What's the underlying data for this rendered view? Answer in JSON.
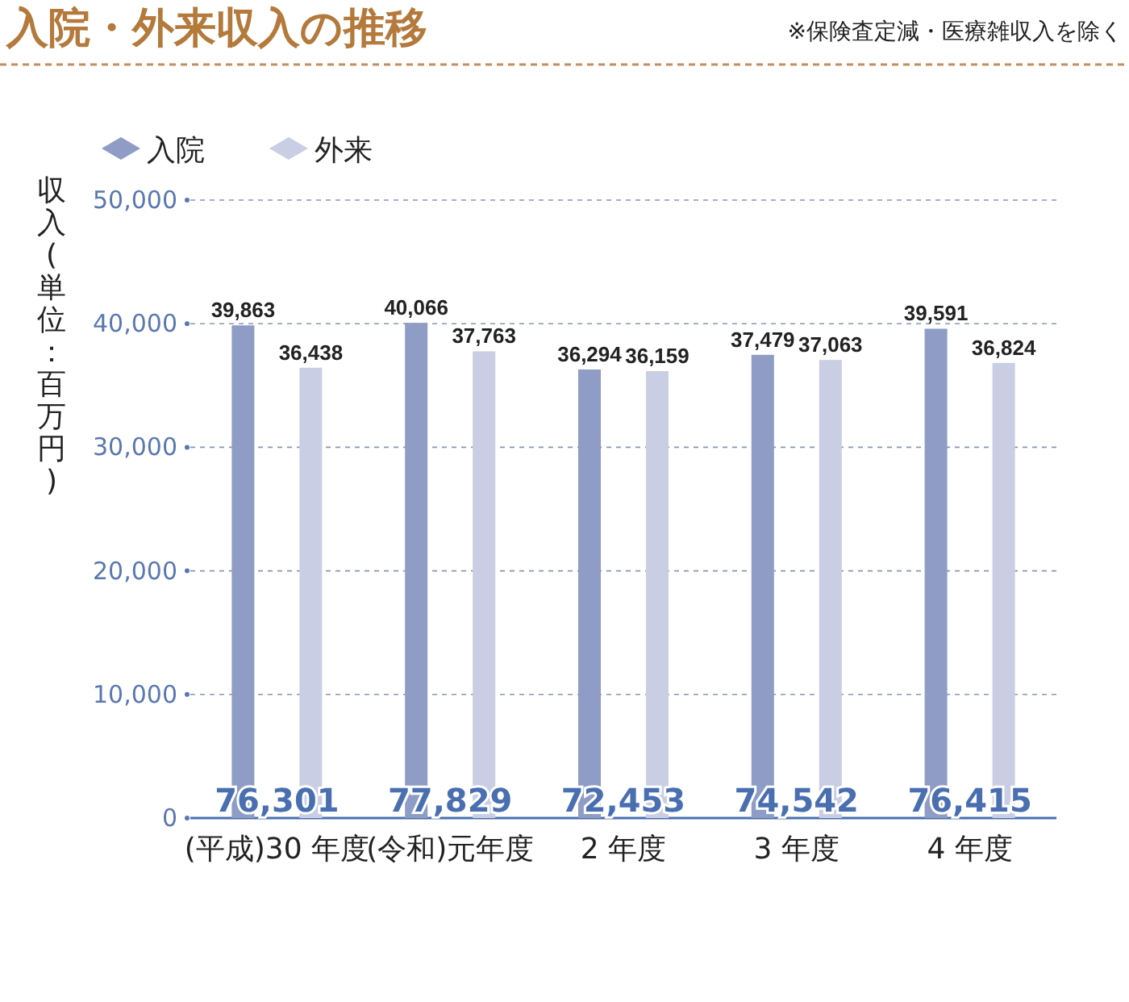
{
  "chart_data": {
    "type": "bar",
    "title": "入院・外来収入の推移",
    "subtitle": "※保険査定減・医療雑収入を除く",
    "ylabel": "収入(単位：百万円)",
    "categories": [
      "(平成)30 年度",
      "(令和)元年度",
      "2 年度",
      "3 年度",
      "4 年度"
    ],
    "series": [
      {
        "name": "入院",
        "color": "#8e9cc6",
        "values": [
          39863,
          40066,
          36294,
          37479,
          39591
        ],
        "value_labels": [
          "39,863",
          "40,066",
          "36,294",
          "37,479",
          "39,591"
        ]
      },
      {
        "name": "外来",
        "color": "#c9cee4",
        "values": [
          36438,
          37763,
          36159,
          37063,
          36824
        ],
        "value_labels": [
          "36,438",
          "37,763",
          "36,159",
          "37,063",
          "36,824"
        ]
      }
    ],
    "totals": [
      "76,301",
      "77,829",
      "72,453",
      "74,542",
      "76,415"
    ],
    "ylim": [
      0,
      50000
    ],
    "yticks": [
      0,
      {
        "value": 10000,
        "label": "10,000"
      },
      {
        "value": 20000,
        "label": "20,000"
      },
      {
        "value": 30000,
        "label": "30,000"
      },
      {
        "value": 40000,
        "label": "40,000"
      },
      {
        "value": 50000,
        "label": "50,000"
      }
    ],
    "grid": "y",
    "legend": "top left"
  }
}
